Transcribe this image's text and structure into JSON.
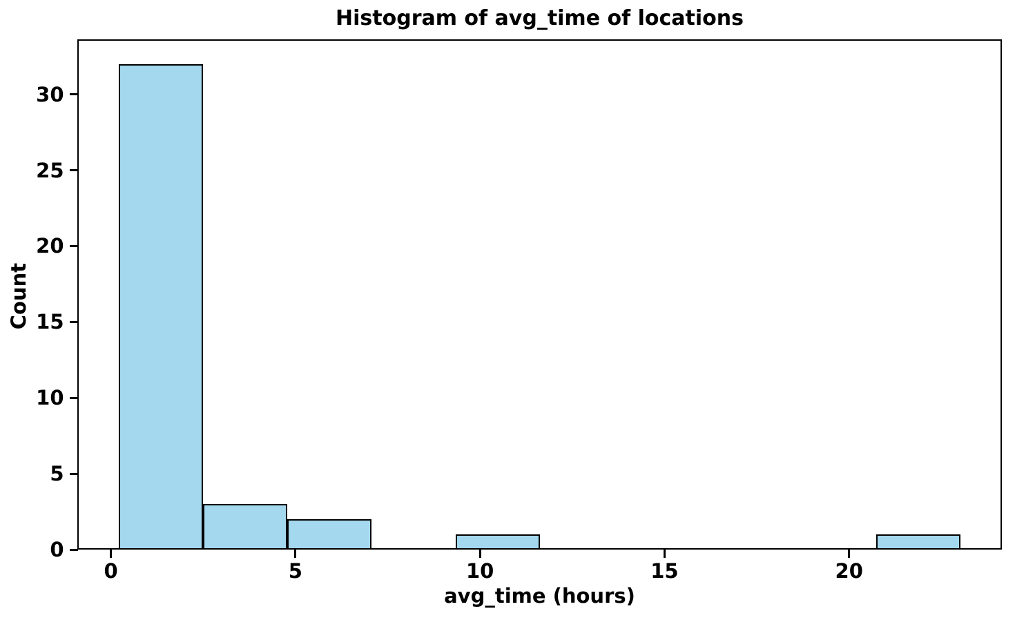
{
  "chart_data": {
    "type": "bar",
    "subtype": "histogram",
    "title": "Histogram of avg_time of locations",
    "xlabel": "avg_time (hours)",
    "ylabel": "Count",
    "bin_edges": [
      0.22,
      2.5,
      4.78,
      7.06,
      9.34,
      11.62,
      13.9,
      16.17,
      18.45,
      20.73,
      23.01
    ],
    "counts": [
      32,
      3,
      2,
      0,
      1,
      0,
      0,
      0,
      0,
      1
    ],
    "xticks": [
      0,
      5,
      10,
      15,
      20
    ],
    "yticks": [
      0,
      5,
      10,
      15,
      20,
      25,
      30
    ],
    "xlim": [
      -0.9,
      24.13
    ],
    "ylim": [
      0,
      33.6
    ],
    "bar_fill_color": "#A4D8EE",
    "bar_edge_color": "#000000",
    "axis_color": "#000000",
    "grid": false,
    "legend": null
  }
}
